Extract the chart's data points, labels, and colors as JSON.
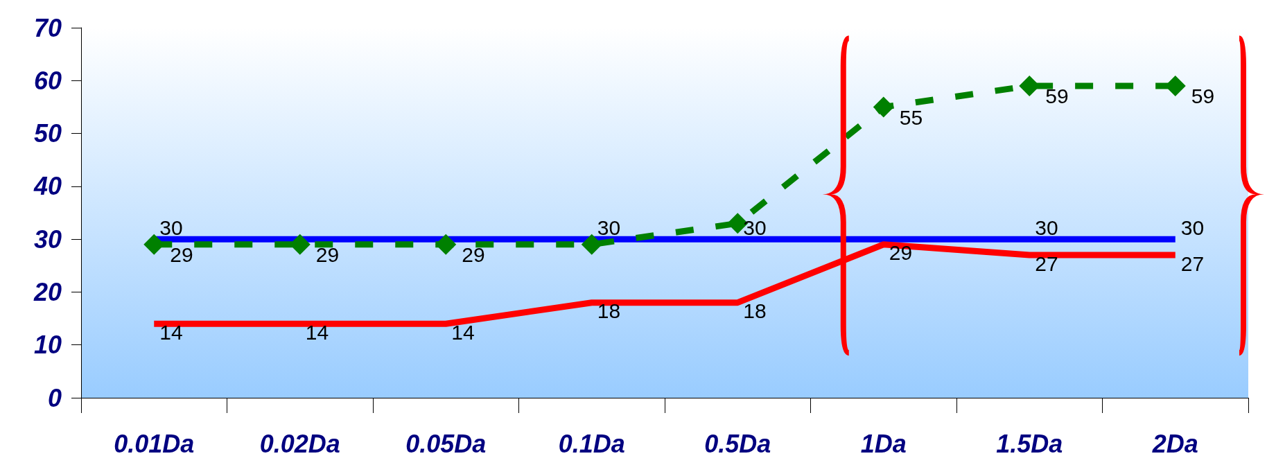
{
  "chart_data": {
    "type": "line",
    "categories": [
      "0.01Da",
      "0.02Da",
      "0.05Da",
      "0.1Da",
      "0.5Da",
      "1Da",
      "1.5Da",
      "2Da"
    ],
    "ylim": [
      0,
      70
    ],
    "yticks": [
      0,
      10,
      20,
      30,
      40,
      50,
      60,
      70
    ],
    "grid": false,
    "series": [
      {
        "color": "#0000ff",
        "values": [
          30,
          30,
          30,
          30,
          30,
          30,
          30,
          30
        ],
        "value_labels": [
          "30",
          null,
          null,
          "30",
          "30",
          null,
          "30",
          "30"
        ],
        "marker": "none",
        "line_style": "solid"
      },
      {
        "color": "#ff0000",
        "values": [
          14,
          14,
          14,
          18,
          18,
          29,
          27,
          27
        ],
        "value_labels": [
          "14",
          "14",
          "14",
          "18",
          "18",
          "29",
          "27",
          "27"
        ],
        "marker": "none",
        "line_style": "solid"
      },
      {
        "color": "#008000",
        "values": [
          29,
          29,
          29,
          29,
          33,
          55,
          59,
          59
        ],
        "value_labels": [
          "29",
          "29",
          "29",
          null,
          null,
          "55",
          "59",
          "59"
        ],
        "marker": "diamond",
        "line_style": "dashed"
      }
    ]
  }
}
